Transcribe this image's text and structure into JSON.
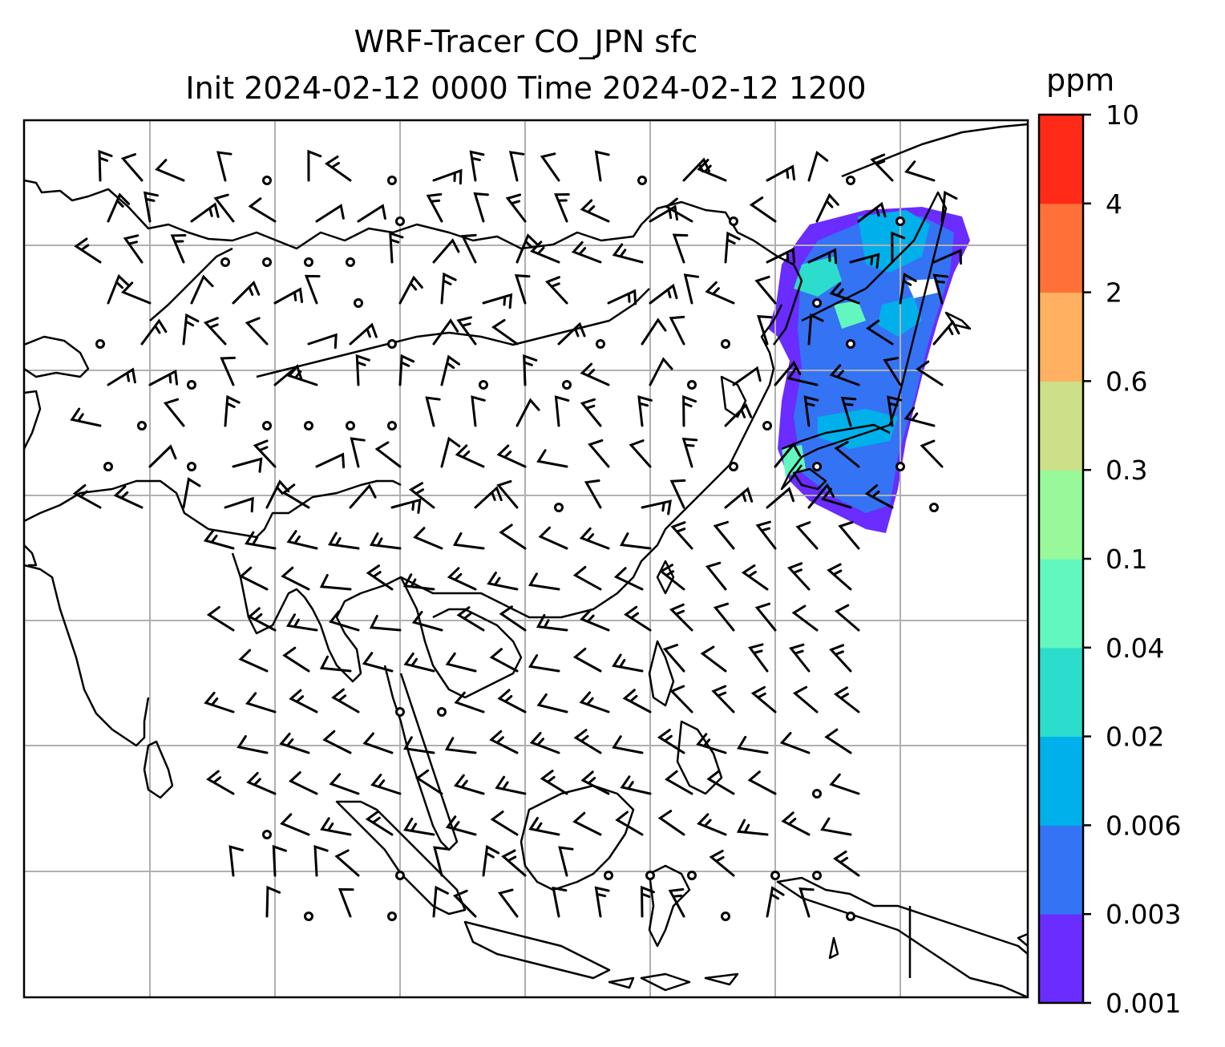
{
  "title_line1": "WRF-Tracer CO_JPN sfc",
  "title_line2": "Init 2024-02-12 0000 Time 2024-02-12 1200",
  "colorbar": {
    "unit": "ppm",
    "ticks": [
      "0.001",
      "0.003",
      "0.006",
      "0.02",
      "0.04",
      "0.1",
      "0.3",
      "0.6",
      "2",
      "4",
      "10"
    ],
    "colors": [
      "#6a2cff",
      "#3473f4",
      "#00b0ea",
      "#2cdccc",
      "#62f7bf",
      "#98f99b",
      "#cde087",
      "#ffb060",
      "#ff7139",
      "#ff2a17"
    ]
  },
  "map": {
    "projection": "PlateCarree",
    "gridlines": true,
    "coastlines": true,
    "tracer_color": "#3473f4",
    "wind_barbs": true
  }
}
